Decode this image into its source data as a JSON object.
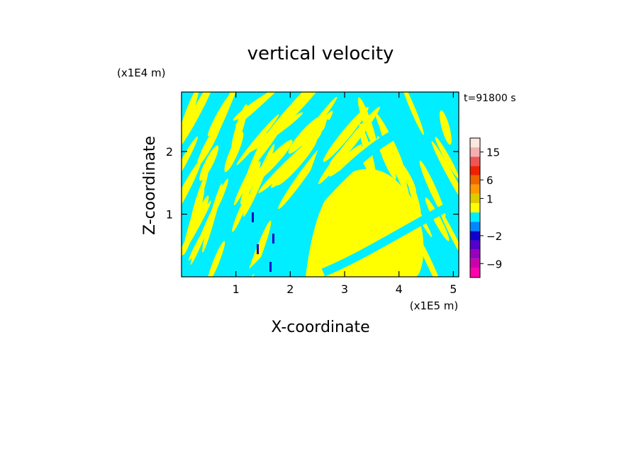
{
  "chart_data": {
    "type": "heatmap",
    "title": "vertical velocity",
    "xlabel": "X-coordinate",
    "ylabel": "Z-coordinate",
    "x_unit": "(x1E5 m)",
    "y_unit": "(x1E4 m)",
    "time_label": "t=91800 s",
    "xlim": [
      0.0,
      5.1
    ],
    "ylim": [
      0.0,
      2.95
    ],
    "x_ticks": [
      1,
      2,
      3,
      4,
      5
    ],
    "y_ticks": [
      1,
      2
    ],
    "colorbar": {
      "levels": [
        {
          "color": "#ff00aa",
          "value": -12
        },
        {
          "color": "#cc00aa",
          "value": -9
        },
        {
          "color": "#9900bb",
          "value": -6
        },
        {
          "color": "#5500cc",
          "value": -4
        },
        {
          "color": "#1100cc",
          "value": -2
        },
        {
          "color": "#0088ff",
          "value": -1
        },
        {
          "color": "#00eeff",
          "value": 0
        },
        {
          "color": "#ffff00",
          "value": 0.5
        },
        {
          "color": "#ddcc00",
          "value": 1
        },
        {
          "color": "#ff9900",
          "value": 3
        },
        {
          "color": "#ee6600",
          "value": 6
        },
        {
          "color": "#ee2200",
          "value": 9
        },
        {
          "color": "#ee5555",
          "value": 12
        },
        {
          "color": "#f4b0b0",
          "value": 15
        },
        {
          "color": "#fbe6e0",
          "value": 18
        }
      ],
      "tick_labels": [
        "15",
        "6",
        "1",
        "-2",
        "-9"
      ]
    },
    "dominant_field_colors": {
      "negative": "#00eeff",
      "positive": "#ffff00"
    }
  }
}
